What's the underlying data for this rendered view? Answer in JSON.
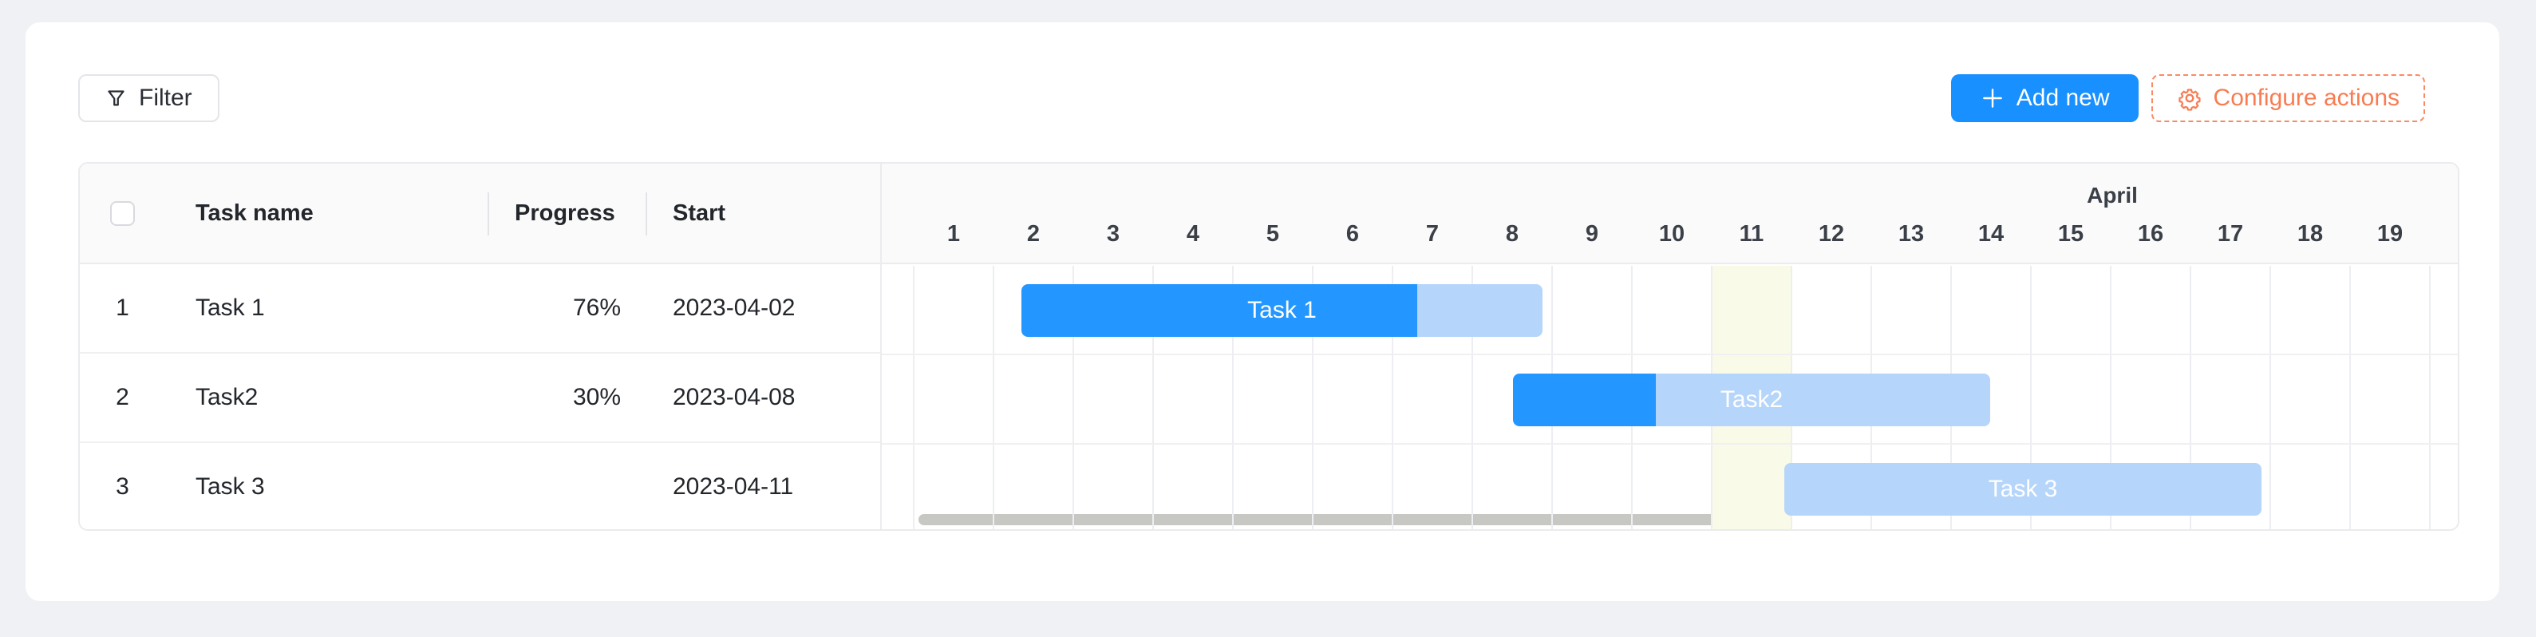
{
  "toolbar": {
    "filter_label": "Filter",
    "add_new_label": "Add new",
    "configure_actions_label": "Configure actions"
  },
  "table": {
    "columns": {
      "task_name": "Task name",
      "progress": "Progress",
      "start": "Start"
    },
    "rows": [
      {
        "num": "1",
        "name": "Task 1",
        "progress": "76%",
        "start": "2023-04-02"
      },
      {
        "num": "2",
        "name": "Task2",
        "progress": "30%",
        "start": "2023-04-08"
      },
      {
        "num": "3",
        "name": "Task 3",
        "progress": "",
        "start": "2023-04-11"
      }
    ]
  },
  "timeline": {
    "month_label": "April",
    "days": [
      "1",
      "2",
      "3",
      "4",
      "5",
      "6",
      "7",
      "8",
      "9",
      "10",
      "11",
      "12",
      "13",
      "14",
      "15",
      "16",
      "17",
      "18",
      "19"
    ]
  },
  "chart_data": {
    "type": "gantt-bar",
    "title": "",
    "categories": [
      "Task 1",
      "Task2",
      "Task 3"
    ],
    "bars": [
      {
        "label": "Task 1",
        "row": 0,
        "start_day": 1.35,
        "duration_days": 6.53,
        "progress_pct": 76
      },
      {
        "label": "Task2",
        "row": 1,
        "start_day": 7.51,
        "duration_days": 5.98,
        "progress_pct": 30
      },
      {
        "label": "Task 3",
        "row": 2,
        "start_day": 10.91,
        "duration_days": 5.98,
        "progress_pct": 0
      }
    ],
    "today_day": 11,
    "axis_days_visible": [
      1,
      19
    ],
    "month": "April"
  },
  "icons": {
    "filter": "funnel-icon",
    "add": "plus-icon",
    "configure": "gear-icon"
  },
  "colors": {
    "primary_blue": "#1890ff",
    "bar_progress_blue": "#2397ff",
    "bar_track_blue": "#b6d5fb",
    "today_highlight": "#fafae9",
    "configure_orange": "#f87c52",
    "page_background": "#eff1f5",
    "header_background": "#fafafa"
  }
}
